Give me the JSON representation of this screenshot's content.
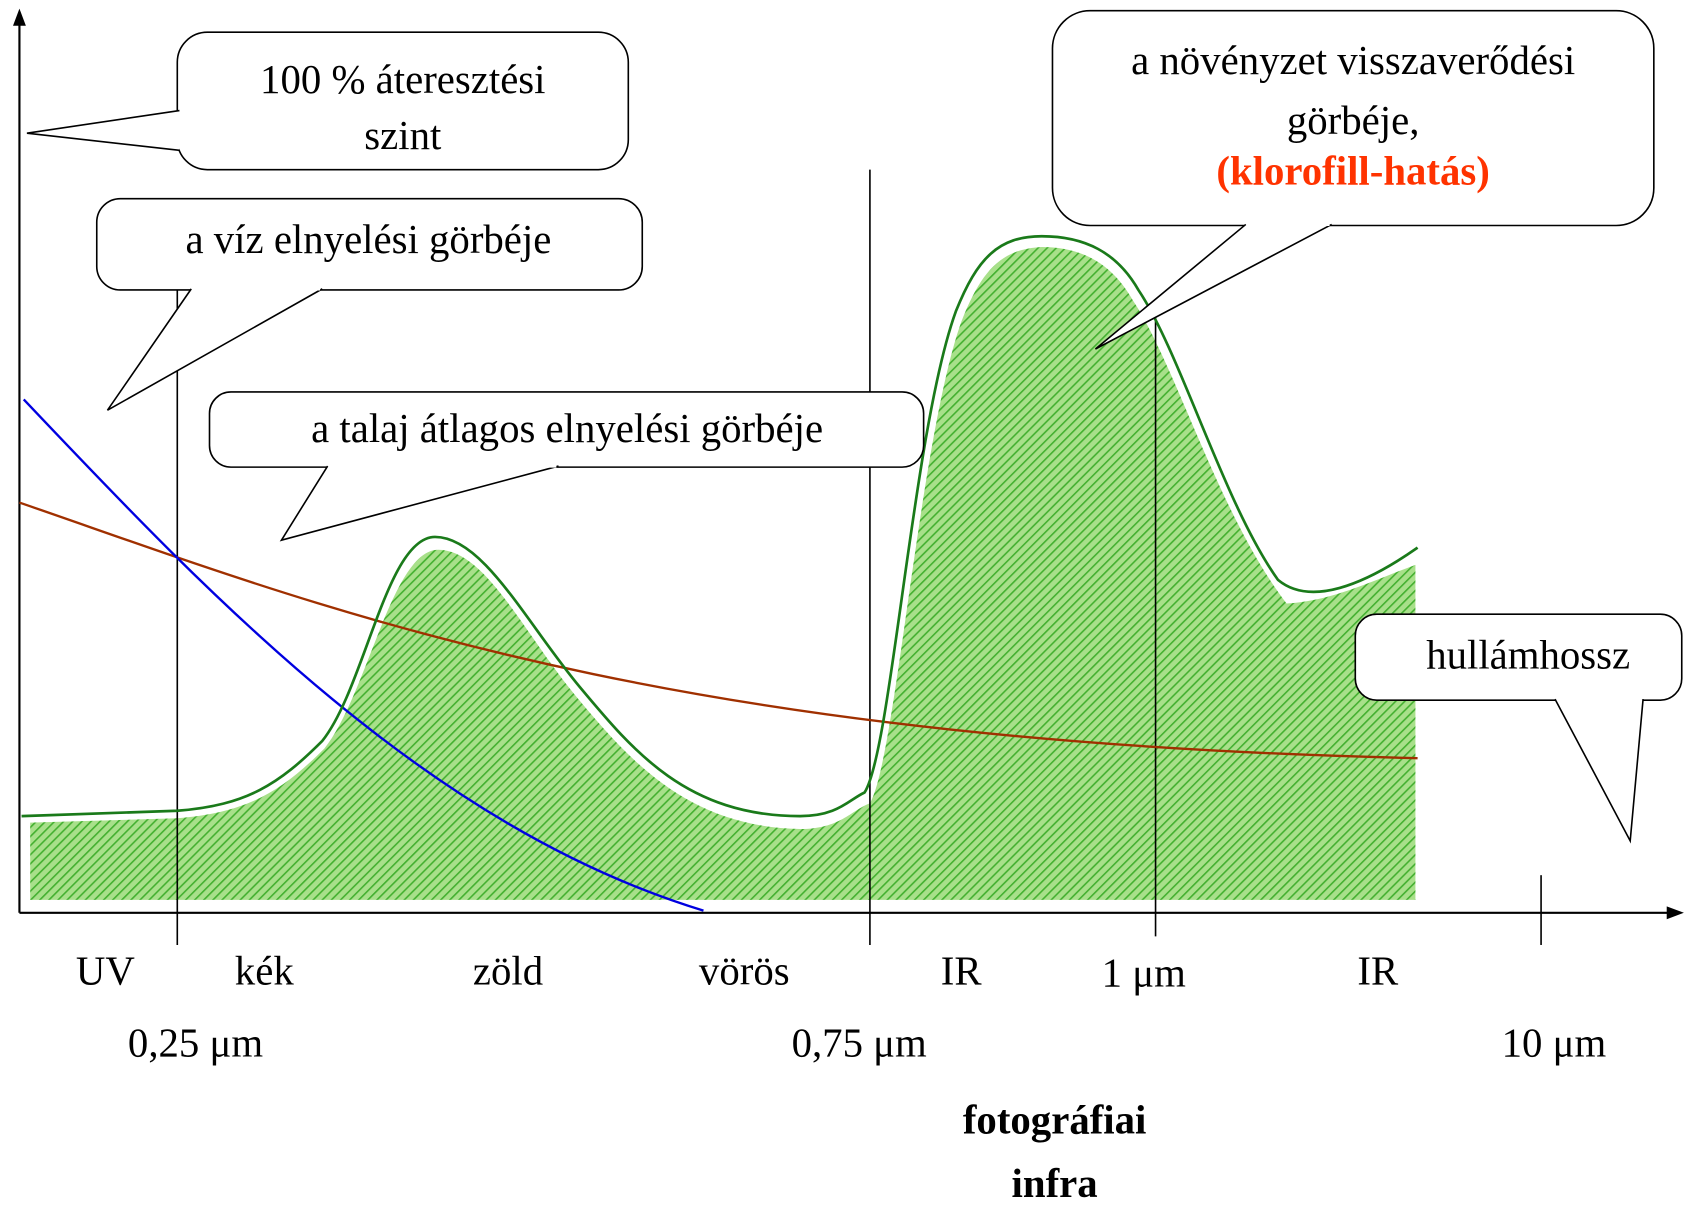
{
  "callouts": {
    "transmission": [
      "100 % áteresztési",
      "szint"
    ],
    "water": "a víz elnyelési görbéje",
    "soil": "a talaj átlagos elnyelési görbéje",
    "vegetation": {
      "lines": [
        "a növényzet visszaverődési",
        "görbéje,"
      ],
      "highlight": "(klorofill-hatás)"
    },
    "wavelength": "hullámhossz"
  },
  "bands": [
    "UV",
    "kék",
    "zöld",
    "vörös",
    "IR",
    "1 μm",
    "IR"
  ],
  "wavelengths": [
    "0,25 μm",
    "0,75 μm",
    "10 μm"
  ],
  "footer": [
    "fotográfiai",
    "infra"
  ]
}
